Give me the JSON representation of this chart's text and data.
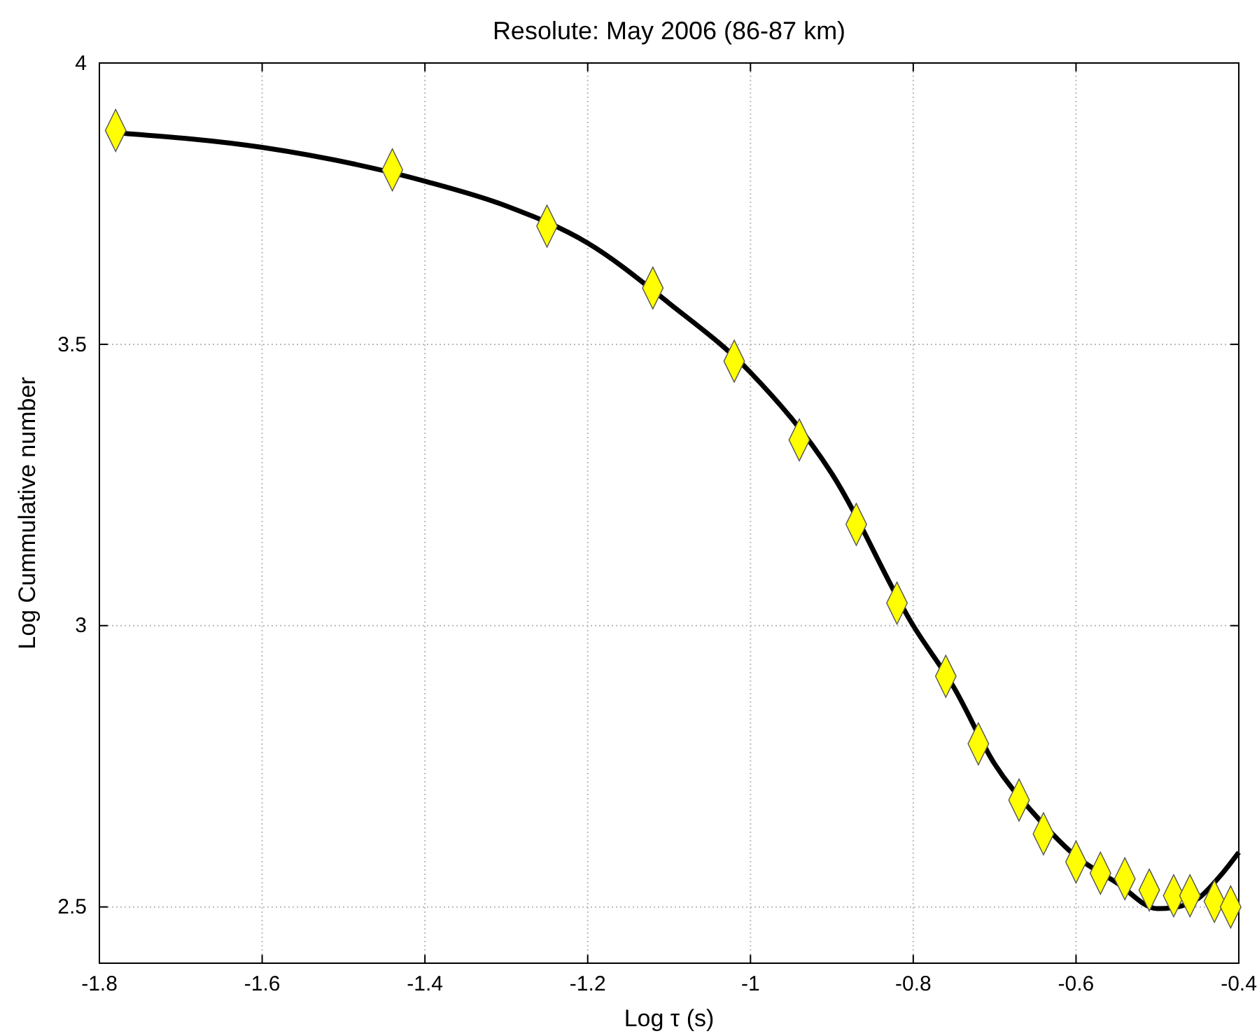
{
  "chart_data": {
    "type": "scatter",
    "title": "Resolute: May 2006 (86-87 km)",
    "xlabel": "Log τ (s)",
    "ylabel": "Log Cummulative number",
    "xlim": [
      -1.8,
      -0.4
    ],
    "xticks": [
      -1.8,
      -1.6,
      -1.4,
      -1.2,
      -1,
      -0.8,
      -0.6,
      -0.4
    ],
    "ylim": [
      2.4,
      4
    ],
    "yticks": [
      2.5,
      3,
      3.5,
      4
    ],
    "grid": true,
    "series": [
      {
        "type": "line",
        "color": "#000000",
        "marker": "none",
        "line_style": "solid",
        "x": [
          -1.77,
          -1.6,
          -1.4,
          -1.3,
          -1.2,
          -1.1,
          -1.0,
          -0.9,
          -0.8,
          -0.75,
          -0.7,
          -0.65,
          -0.6,
          -0.55,
          -0.5,
          -0.48,
          -0.45,
          -0.42,
          -0.4
        ],
        "values": [
          3.875,
          3.85,
          3.79,
          3.746,
          3.68,
          3.573,
          3.45,
          3.27,
          3.0,
          2.89,
          2.754,
          2.663,
          2.59,
          2.543,
          2.497,
          2.499,
          2.515,
          2.56,
          2.597
        ]
      },
      {
        "type": "scatter",
        "color": "#ffff00",
        "marker": "diamond",
        "x": [
          -1.78,
          -1.44,
          -1.25,
          -1.12,
          -1.02,
          -0.94,
          -0.87,
          -0.82,
          -0.76,
          -0.72,
          -0.67,
          -0.64,
          -0.6,
          -0.57,
          -0.54,
          -0.51,
          -0.48,
          -0.46,
          -0.43,
          -0.41
        ],
        "values": [
          3.88,
          3.81,
          3.71,
          3.6,
          3.47,
          3.33,
          3.18,
          3.04,
          2.91,
          2.79,
          2.69,
          2.63,
          2.58,
          2.56,
          2.55,
          2.53,
          2.52,
          2.52,
          2.51,
          2.5
        ]
      }
    ]
  }
}
